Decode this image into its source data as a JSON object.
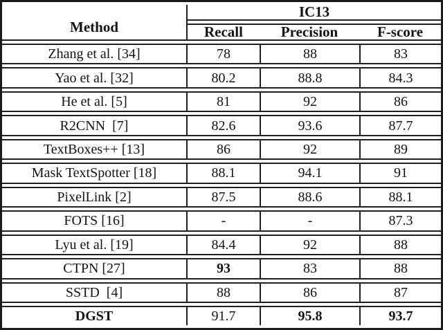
{
  "table": {
    "method_header": "Method",
    "group_header": "IC13",
    "columns": [
      "Recall",
      "Precision",
      "F-score"
    ],
    "rows": [
      {
        "method": "Zhang et al. [34]",
        "recall": "78",
        "precision": "88",
        "fscore": "83",
        "bold": []
      },
      {
        "method": "Yao et al. [32]",
        "recall": "80.2",
        "precision": "88.8",
        "fscore": "84.3",
        "bold": []
      },
      {
        "method": "He et al. [5]",
        "recall": "81",
        "precision": "92",
        "fscore": "86",
        "bold": []
      },
      {
        "method": "R2CNN  [7]",
        "recall": "82.6",
        "precision": "93.6",
        "fscore": "87.7",
        "bold": []
      },
      {
        "method": "TextBoxes++ [13]",
        "recall": "86",
        "precision": "92",
        "fscore": "89",
        "bold": []
      },
      {
        "method": "Mask TextSpotter [18]",
        "recall": "88.1",
        "precision": "94.1",
        "fscore": "91",
        "bold": []
      },
      {
        "method": "PixelLink [2]",
        "recall": "87.5",
        "precision": "88.6",
        "fscore": "88.1",
        "bold": []
      },
      {
        "method": "FOTS [16]",
        "recall": "-",
        "precision": "-",
        "fscore": "87.3",
        "bold": []
      },
      {
        "method": "Lyu et al. [19]",
        "recall": "84.4",
        "precision": "92",
        "fscore": "88",
        "bold": []
      },
      {
        "method": "CTPN [27]",
        "recall": "93",
        "precision": "83",
        "fscore": "88",
        "bold": [
          "recall"
        ]
      },
      {
        "method": "SSTD  [4]",
        "recall": "88",
        "precision": "86",
        "fscore": "87",
        "bold": []
      },
      {
        "method": "DGST",
        "recall": "91.7",
        "precision": "95.8",
        "fscore": "93.7",
        "bold": [
          "method",
          "precision",
          "fscore"
        ]
      }
    ]
  },
  "colors": {
    "border": "#1f1f1f",
    "text": "#131313",
    "background": "#ffffff"
  }
}
